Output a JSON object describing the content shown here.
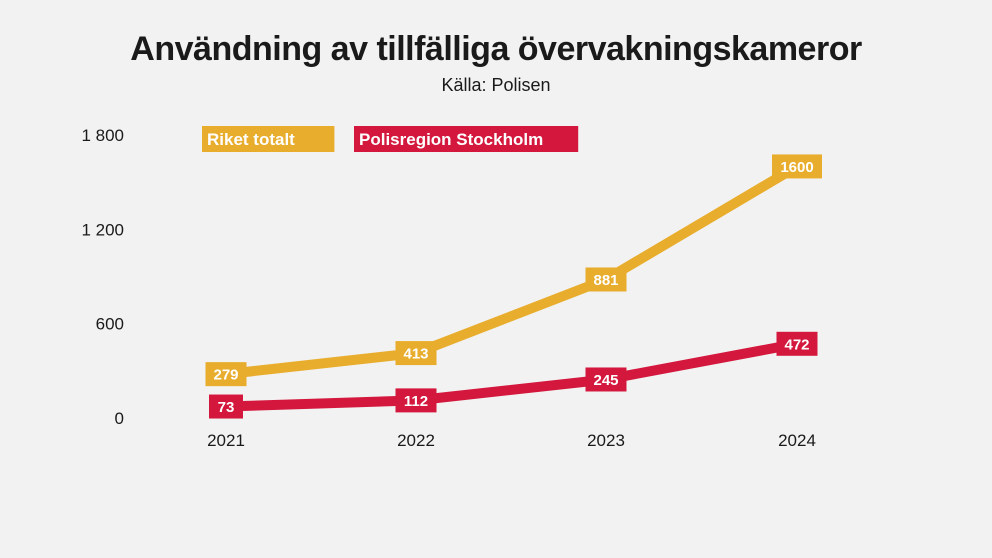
{
  "chart_data": {
    "type": "line",
    "title": "Användning av tillfälliga övervakningskameror",
    "subtitle": "Källa: Polisen",
    "x": [
      "2021",
      "2022",
      "2023",
      "2024"
    ],
    "y_ticks": [
      0,
      600,
      1200,
      1800
    ],
    "y_tick_labels": [
      "0",
      "600",
      "1 200",
      "1 800"
    ],
    "ylim": [
      0,
      1800
    ],
    "grid": false,
    "legend_position": "top-left, inline",
    "series": [
      {
        "name": "Riket totalt",
        "values": [
          279,
          413,
          881,
          1600
        ],
        "labels": [
          "279",
          "413",
          "881",
          "1600"
        ],
        "color": "#e8ad2c"
      },
      {
        "name": "Polisregion Stockholm",
        "values": [
          73,
          112,
          245,
          472
        ],
        "labels": [
          "73",
          "112",
          "245",
          "472"
        ],
        "color": "#d4183d"
      }
    ]
  }
}
